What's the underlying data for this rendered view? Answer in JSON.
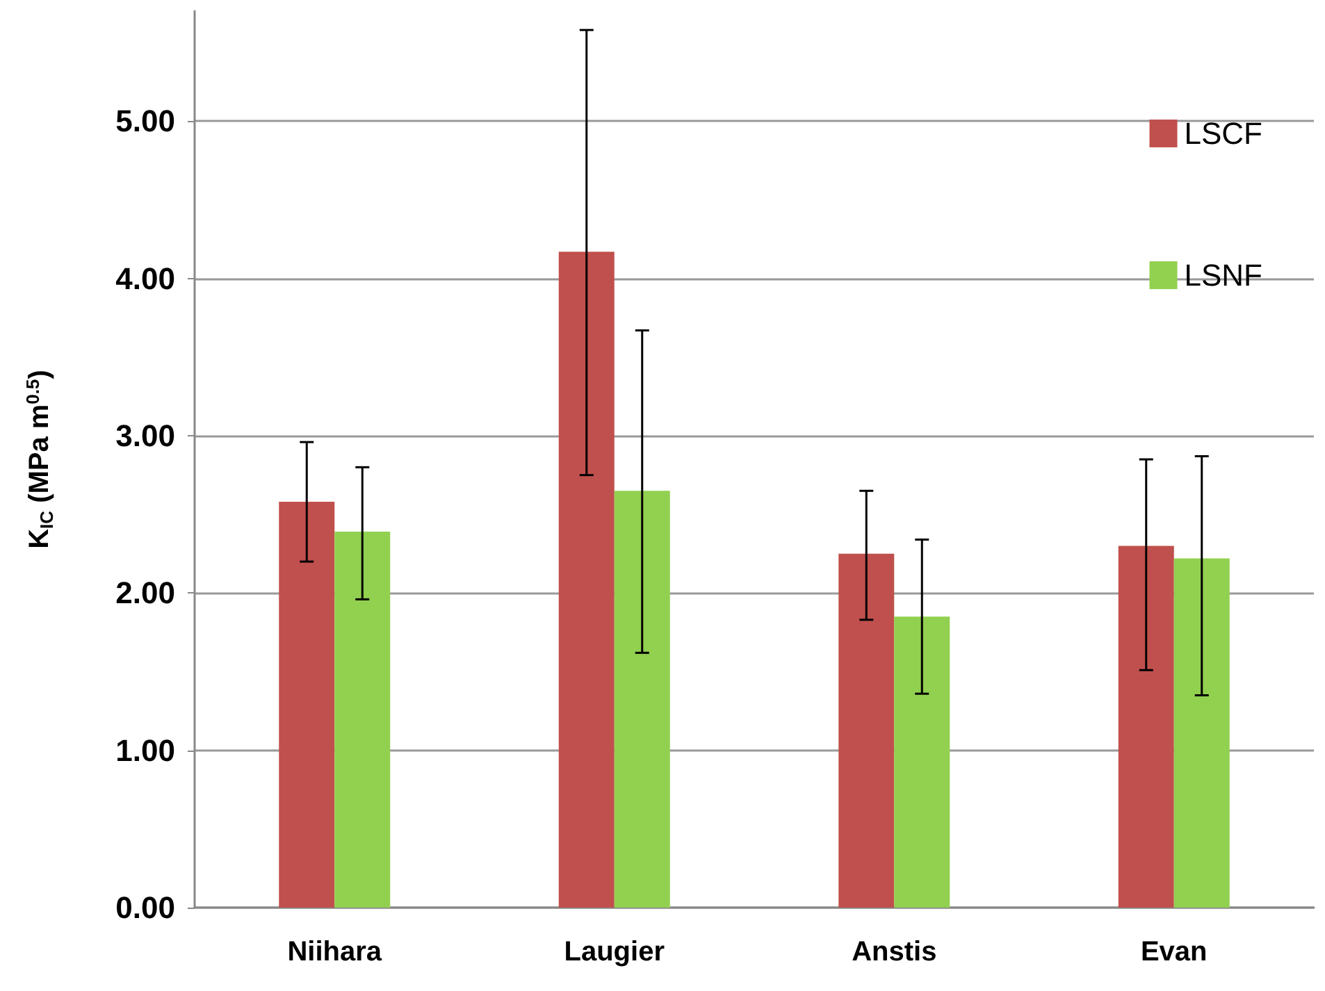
{
  "chart_data": {
    "type": "bar",
    "ylabel": "K$_{IC}$ (MPa m$^{0.5}$)",
    "categories": [
      "Niihara",
      "Laugier",
      "Anstis",
      "Evan"
    ],
    "series": [
      {
        "name": "LSCF",
        "color": "#c0504d",
        "values": [
          2.58,
          4.17,
          2.25,
          2.3
        ],
        "errors": [
          [
            2.2,
            2.96
          ],
          [
            2.75,
            5.58
          ],
          [
            1.83,
            2.65
          ],
          [
            1.51,
            2.85
          ]
        ]
      },
      {
        "name": "LSNF",
        "color": "#92d050",
        "values": [
          2.39,
          2.65,
          1.85,
          2.22
        ],
        "errors": [
          [
            1.96,
            2.8
          ],
          [
            1.62,
            3.67
          ],
          [
            1.36,
            2.34
          ],
          [
            1.35,
            2.87
          ]
        ]
      }
    ],
    "ylim": [
      0,
      5.7
    ],
    "yticks": [
      {
        "value": 0,
        "label": "0.00"
      },
      {
        "value": 1,
        "label": "1.00"
      },
      {
        "value": 2,
        "label": "2.00"
      },
      {
        "value": 3,
        "label": "3.00"
      },
      {
        "value": 4,
        "label": "4.00"
      },
      {
        "value": 5,
        "label": "5.00"
      }
    ],
    "grid": "y",
    "legend": "top right"
  }
}
